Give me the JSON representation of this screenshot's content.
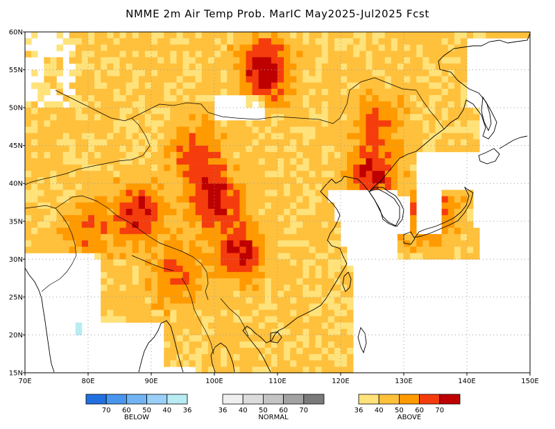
{
  "title": "NMME 2m Air Temp Prob. MarIC  May2025-Jul2025 Fcst",
  "map": {
    "lon_range": [
      70,
      150
    ],
    "lat_range": [
      15,
      60
    ],
    "lon_ticks": [
      "70E",
      "80E",
      "90E",
      "100E",
      "110E",
      "120E",
      "130E",
      "140E",
      "150E"
    ],
    "lat_ticks": [
      "15N",
      "20N",
      "25N",
      "30N",
      "35N",
      "40N",
      "45N",
      "50N",
      "55N",
      "60N"
    ],
    "projection": "lat-lon",
    "gridlines": "dotted"
  },
  "legend": [
    {
      "name": "BELOW",
      "ticks": [
        "70",
        "60",
        "50",
        "40",
        "36"
      ],
      "colors": [
        "#2270e0",
        "#4896ee",
        "#72b4f3",
        "#9ad0f7",
        "#b8ecf2"
      ]
    },
    {
      "name": "NORMAL",
      "ticks": [
        "36",
        "40",
        "50",
        "60",
        "70"
      ],
      "colors": [
        "#efefef",
        "#dcdcdc",
        "#c4c4c4",
        "#a2a2a2",
        "#7a7a7a"
      ]
    },
    {
      "name": "ABOVE",
      "ticks": [
        "36",
        "40",
        "50",
        "60",
        "70"
      ],
      "colors": [
        "#ffe27a",
        "#ffc03c",
        "#ff9a00",
        "#f53c0c",
        "#be0000"
      ]
    }
  ],
  "colors": {
    "land_outline": "#000000",
    "grid": "#9a9a9a",
    "frame": "#000000"
  }
}
